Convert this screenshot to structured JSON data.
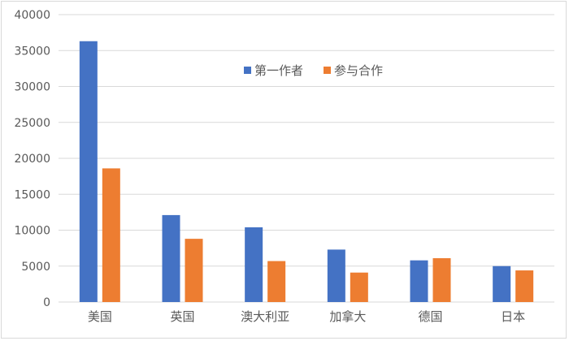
{
  "chart_data": {
    "type": "bar",
    "categories": [
      "美国",
      "英国",
      "澳大利亚",
      "加拿大",
      "德国",
      "日本"
    ],
    "series": [
      {
        "name": "第一作者",
        "color": "#4472c4",
        "values": [
          36300,
          12100,
          10400,
          7300,
          5800,
          5000
        ]
      },
      {
        "name": "参与合作",
        "color": "#ed7d31",
        "values": [
          18600,
          8800,
          5700,
          4100,
          6100,
          4400
        ]
      }
    ],
    "ylim": [
      0,
      40000
    ],
    "yticks": [
      0,
      5000,
      10000,
      15000,
      20000,
      25000,
      30000,
      35000,
      40000
    ],
    "grid": true,
    "legend_position": "top-center-inside",
    "title": "",
    "xlabel": "",
    "ylabel": ""
  }
}
